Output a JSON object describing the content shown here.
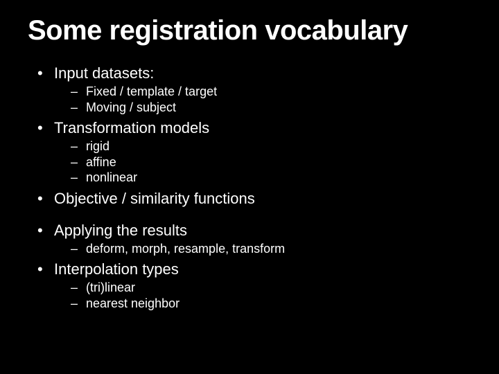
{
  "background_color": "#000000",
  "text_color": "#ffffff",
  "font_family": "Arial, Helvetica, sans-serif",
  "title": {
    "text": "Some registration vocabulary",
    "fontsize": 40,
    "weight": "bold"
  },
  "bullets": {
    "level1_marker": "•",
    "level2_marker": "–",
    "level1_fontsize": 22,
    "level2_fontsize": 18,
    "items": [
      {
        "label": "Input datasets:",
        "sub": [
          "Fixed / template / target",
          "Moving / subject"
        ]
      },
      {
        "label": "Transformation models",
        "sub": [
          "rigid",
          "affine",
          "nonlinear"
        ]
      },
      {
        "label": "Objective / similarity functions",
        "sub": []
      },
      {
        "label": "Applying the results",
        "sub": [
          "deform, morph, resample, transform"
        ]
      },
      {
        "label": "Interpolation types",
        "sub": [
          "(tri)linear",
          "nearest neighbor"
        ]
      }
    ]
  }
}
